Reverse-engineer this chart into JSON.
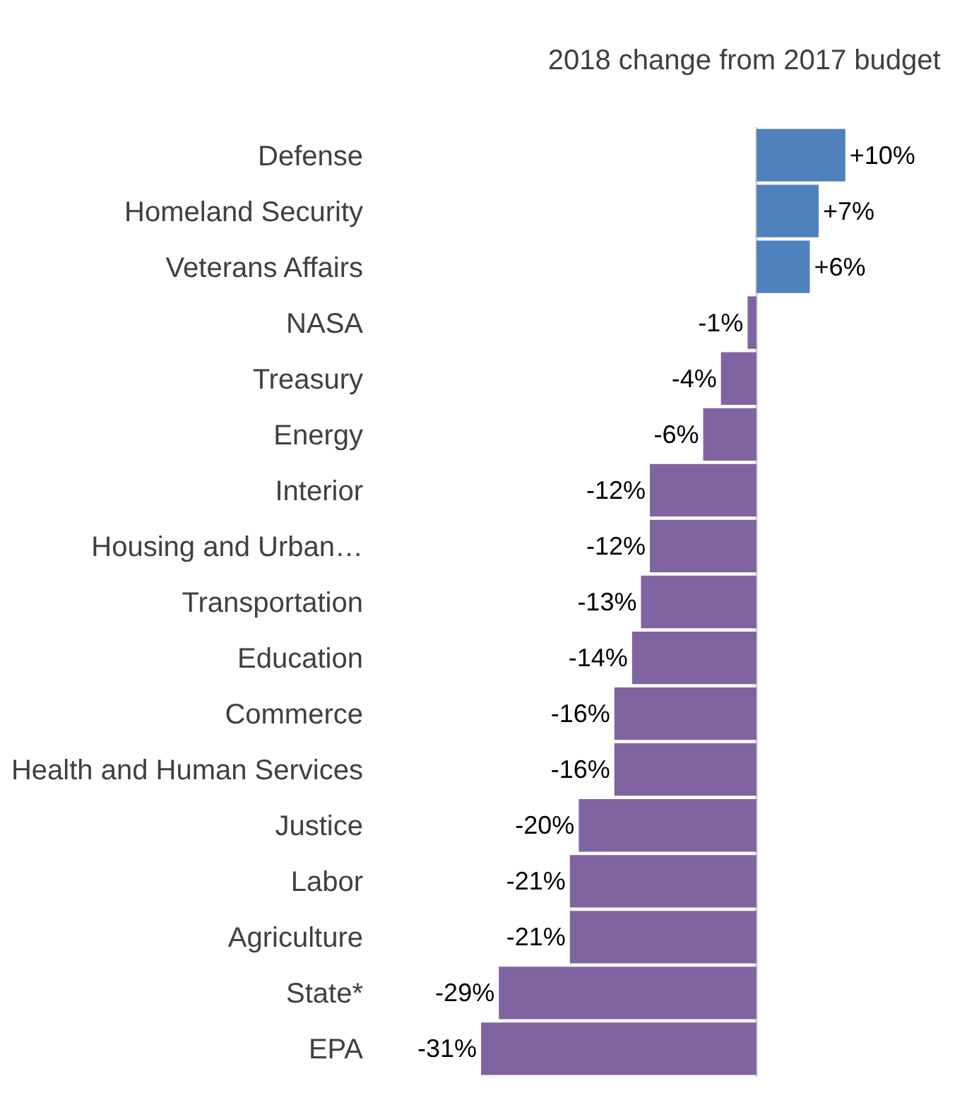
{
  "chart_data": {
    "type": "bar",
    "orientation": "horizontal",
    "title": "2018 change from 2017 budget",
    "categories": [
      "Defense",
      "Homeland Security",
      "Veterans Affairs",
      "NASA",
      "Treasury",
      "Energy",
      "Interior",
      "Housing and Urban…",
      "Transportation",
      "Education",
      "Commerce",
      "Health and Human Services",
      "Justice",
      "Labor",
      "Agriculture",
      "State*",
      "EPA"
    ],
    "values": [
      10,
      7,
      6,
      -1,
      -4,
      -6,
      -12,
      -12,
      -13,
      -14,
      -16,
      -16,
      -20,
      -21,
      -21,
      -29,
      -31
    ],
    "colors": [
      "#4f81bd",
      "#4f81bd",
      "#4f81bd",
      "#8064a2",
      "#8064a2",
      "#8064a2",
      "#8064a2",
      "#8064a2",
      "#8064a2",
      "#8064a2",
      "#8064a2",
      "#8064a2",
      "#8064a2",
      "#8064a2",
      "#8064a2",
      "#8064a2",
      "#8064a2"
    ],
    "value_labels": [
      "+10%",
      "+7%",
      "+6%",
      "-1%",
      "-4%",
      "-6%",
      "-12%",
      "-12%",
      "-13%",
      "-14%",
      "-16%",
      "-16%",
      "-20%",
      "-21%",
      "-21%",
      "-29%",
      "-31%"
    ],
    "tick_labels": "y"
  }
}
